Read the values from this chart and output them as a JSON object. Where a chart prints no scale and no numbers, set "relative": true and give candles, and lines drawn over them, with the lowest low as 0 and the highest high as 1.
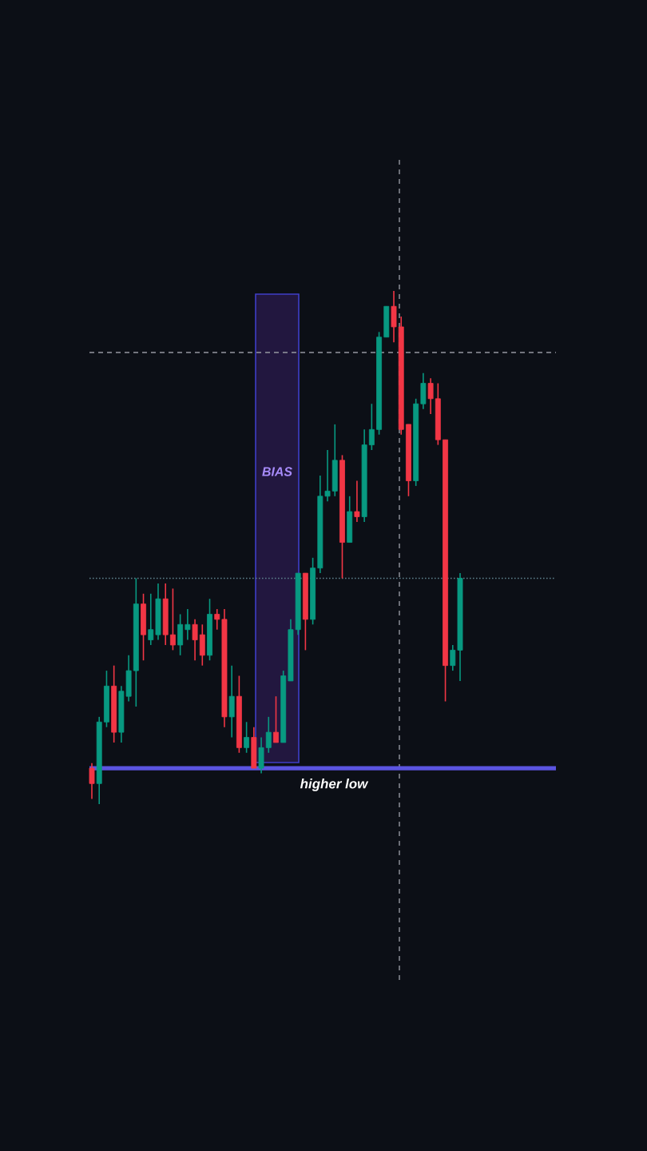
{
  "chart_data": {
    "type": "candlestick",
    "relative": true,
    "categories": [
      null,
      null,
      null,
      null,
      null,
      null,
      null,
      null,
      null,
      null,
      null,
      null,
      null,
      null,
      null,
      null,
      null,
      null,
      null,
      null,
      null,
      null,
      null,
      null,
      null,
      null,
      null,
      null,
      null,
      null,
      null,
      null,
      null,
      null,
      null,
      null,
      null,
      null,
      null,
      null,
      null,
      null,
      null,
      null,
      null,
      null,
      null,
      null,
      null,
      null,
      null
    ],
    "ohlc": [
      [
        0.07,
        0.08,
        0.01,
        0.04
      ],
      [
        0.04,
        0.17,
        0.0,
        0.16
      ],
      [
        0.16,
        0.26,
        0.15,
        0.23
      ],
      [
        0.23,
        0.27,
        0.12,
        0.14
      ],
      [
        0.14,
        0.23,
        0.12,
        0.22
      ],
      [
        0.21,
        0.29,
        0.2,
        0.26
      ],
      [
        0.26,
        0.44,
        0.19,
        0.39
      ],
      [
        0.39,
        0.41,
        0.28,
        0.33
      ],
      [
        0.32,
        0.41,
        0.31,
        0.34
      ],
      [
        0.33,
        0.43,
        0.32,
        0.4
      ],
      [
        0.4,
        0.43,
        0.31,
        0.33
      ],
      [
        0.33,
        0.42,
        0.3,
        0.31
      ],
      [
        0.31,
        0.37,
        0.29,
        0.35
      ],
      [
        0.34,
        0.38,
        0.32,
        0.35
      ],
      [
        0.35,
        0.36,
        0.28,
        0.32
      ],
      [
        0.33,
        0.35,
        0.27,
        0.29
      ],
      [
        0.29,
        0.4,
        0.28,
        0.37
      ],
      [
        0.37,
        0.38,
        0.34,
        0.36
      ],
      [
        0.36,
        0.38,
        0.15,
        0.17
      ],
      [
        0.17,
        0.27,
        0.13,
        0.21
      ],
      [
        0.21,
        0.25,
        0.1,
        0.11
      ],
      [
        0.11,
        0.16,
        0.1,
        0.13
      ],
      [
        0.13,
        0.15,
        0.07,
        0.07
      ],
      [
        0.07,
        0.13,
        0.06,
        0.11
      ],
      [
        0.11,
        0.17,
        0.1,
        0.14
      ],
      [
        0.14,
        0.21,
        0.12,
        0.12
      ],
      [
        0.12,
        0.26,
        0.12,
        0.25
      ],
      [
        0.24,
        0.36,
        0.24,
        0.34
      ],
      [
        0.34,
        0.45,
        0.33,
        0.45
      ],
      [
        0.45,
        0.45,
        0.3,
        0.36
      ],
      [
        0.36,
        0.48,
        0.35,
        0.46
      ],
      [
        0.46,
        0.64,
        0.45,
        0.6
      ],
      [
        0.6,
        0.69,
        0.59,
        0.61
      ],
      [
        0.61,
        0.74,
        0.6,
        0.67
      ],
      [
        0.67,
        0.68,
        0.44,
        0.51
      ],
      [
        0.51,
        0.6,
        0.51,
        0.57
      ],
      [
        0.57,
        0.63,
        0.55,
        0.56
      ],
      [
        0.56,
        0.73,
        0.55,
        0.7
      ],
      [
        0.7,
        0.78,
        0.69,
        0.73
      ],
      [
        0.73,
        0.92,
        0.72,
        0.91
      ],
      [
        0.91,
        0.97,
        0.91,
        0.97
      ],
      [
        0.97,
        1.0,
        0.9,
        0.93
      ],
      [
        0.93,
        0.95,
        0.72,
        0.73
      ],
      [
        0.74,
        0.74,
        0.6,
        0.63
      ],
      [
        0.63,
        0.79,
        0.62,
        0.78
      ],
      [
        0.78,
        0.84,
        0.77,
        0.82
      ],
      [
        0.82,
        0.83,
        0.76,
        0.79
      ],
      [
        0.79,
        0.82,
        0.7,
        0.71
      ],
      [
        0.71,
        0.71,
        0.2,
        0.27
      ],
      [
        0.27,
        0.31,
        0.26,
        0.3
      ],
      [
        0.3,
        0.45,
        0.24,
        0.44
      ]
    ],
    "colors": [
      "#f23645",
      "#089981",
      "#089981",
      "#f23645",
      "#089981",
      "#089981",
      "#089981",
      "#f23645",
      "#089981",
      "#089981",
      "#f23645",
      "#f23645",
      "#089981",
      "#089981",
      "#f23645",
      "#f23645",
      "#089981",
      "#f23645",
      "#f23645",
      "#089981",
      "#f23645",
      "#089981",
      "#f23645",
      "#089981",
      "#089981",
      "#f23645",
      "#089981",
      "#089981",
      "#089981",
      "#f23645",
      "#089981",
      "#089981",
      "#089981",
      "#089981",
      "#f23645",
      "#089981",
      "#f23645",
      "#089981",
      "#089981",
      "#089981",
      "#089981",
      "#f23645",
      "#f23645",
      "#f23645",
      "#089981",
      "#089981",
      "#f23645",
      "#f23645",
      "#f23645",
      "#089981",
      "#089981"
    ],
    "ref_lines": [
      {
        "axis": "y",
        "value": 0.88,
        "color": "#9598a1",
        "line_style": "dashed"
      },
      {
        "axis": "y",
        "value": 0.44,
        "color": "#5d7f8a",
        "line_style": "dotted"
      },
      {
        "axis": "y",
        "value": 0.07,
        "color": "#5b54e0",
        "line_style": "solid",
        "label": "higher low"
      }
    ],
    "annotations": [
      "BIAS"
    ]
  }
}
